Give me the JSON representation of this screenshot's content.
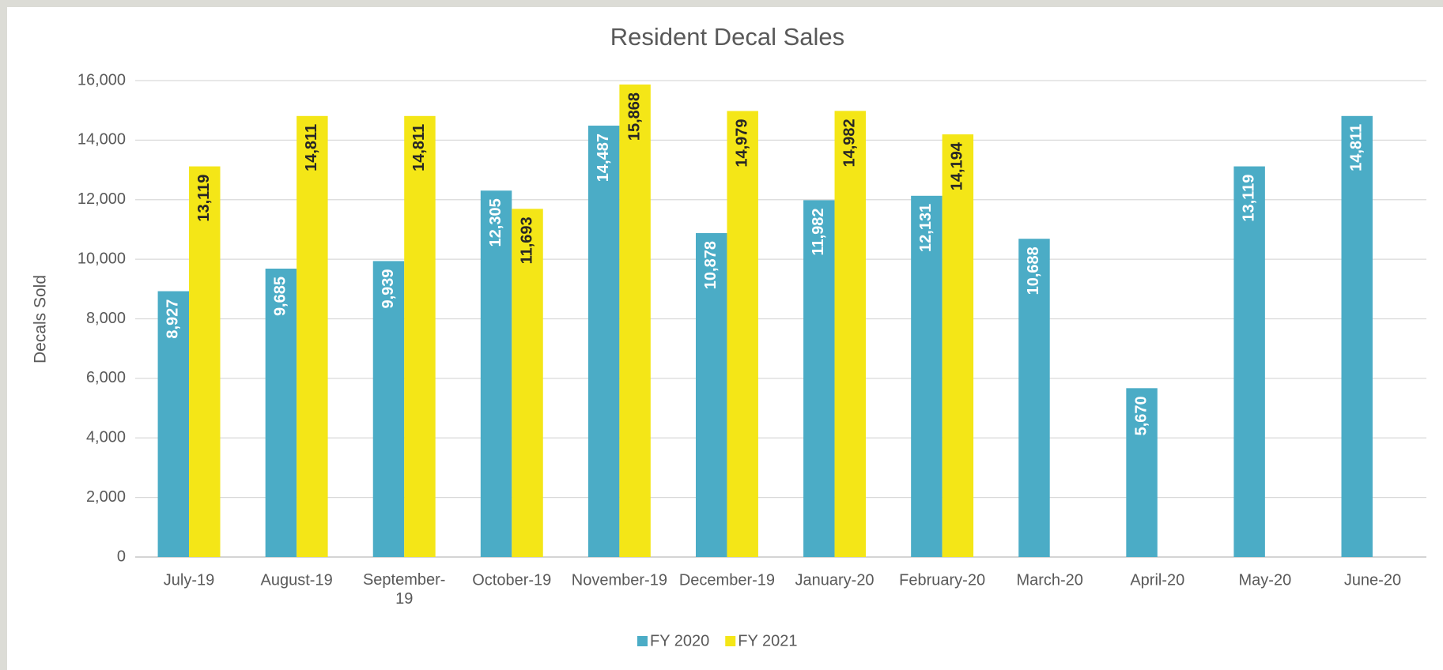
{
  "chart_data": {
    "type": "bar",
    "title": "Resident Decal Sales",
    "y_label": "Decals Sold",
    "categories": [
      "July-19",
      "August-19",
      "September-19",
      "October-19",
      "November-19",
      "December-19",
      "January-20",
      "February-20",
      "March-20",
      "April-20",
      "May-20",
      "June-20"
    ],
    "series": [
      {
        "name": "FY 2020",
        "color": "#4bacc6",
        "values": [
          8927,
          9685,
          9939,
          12305,
          14487,
          10878,
          11982,
          12131,
          10688,
          5670,
          13119,
          14811
        ],
        "value_labels": [
          "8,927",
          "9,685",
          "9,939",
          "12,305",
          "14,487",
          "10,878",
          "11,982",
          "12,131",
          "10,688",
          "5,670",
          "13,119",
          "14,811"
        ]
      },
      {
        "name": "FY 2021",
        "color": "#f4e617",
        "values": [
          13119,
          14811,
          14811,
          11693,
          15868,
          14979,
          14982,
          14194,
          null,
          null,
          null,
          null
        ],
        "value_labels": [
          "13,119",
          "14,811",
          "14,811",
          "11,693",
          "15,868",
          "14,979",
          "14,982",
          "14,194",
          null,
          null,
          null,
          null
        ]
      }
    ],
    "ylim": [
      0,
      16000
    ],
    "yticks": [
      0,
      {
        "value": 2000,
        "label": "2,000"
      },
      {
        "value": 4000,
        "label": "4,000"
      },
      {
        "value": 6000,
        "label": "6,000"
      },
      {
        "value": 8000,
        "label": "8,000"
      },
      {
        "value": 10000,
        "label": "10,000"
      },
      {
        "value": 12000,
        "label": "12,000"
      },
      {
        "value": 14000,
        "label": "14,000"
      },
      {
        "value": 16000,
        "label": "16,000"
      }
    ],
    "grid": true,
    "legend": "bottom"
  }
}
